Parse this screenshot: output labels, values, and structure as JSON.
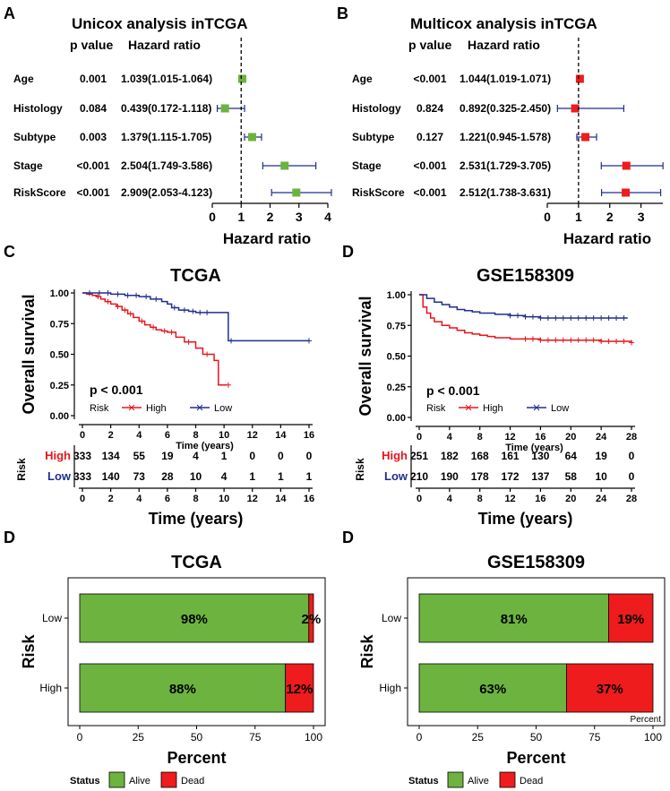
{
  "colors": {
    "green": "#6cb33f",
    "red": "#ee1c1c",
    "blue": "#1f2f8f",
    "black": "#000000",
    "grey": "#888888",
    "legendRed": "#e8141c",
    "kmRed": "#e8141c",
    "kmBlue": "#1f2f8f"
  },
  "chart_data": [
    {
      "type": "forest",
      "panel_label": "A",
      "title": "Unicox analysis inTCGA",
      "col_p": "p value",
      "col_hr": "Hazard ratio",
      "xlabel": "Hazard ratio",
      "xlim": [
        0,
        4
      ],
      "ticks": [
        0,
        1,
        2,
        3,
        4
      ],
      "ref": 1,
      "marker": "green",
      "rows": [
        {
          "name": "Age",
          "p": "0.001",
          "hrtext": "1.039(1.015-1.064)",
          "hr": 1.039,
          "lo": 1.015,
          "hi": 1.064
        },
        {
          "name": "Histology",
          "p": "0.084",
          "hrtext": "0.439(0.172-1.118)",
          "hr": 0.439,
          "lo": 0.172,
          "hi": 1.118
        },
        {
          "name": "Subtype",
          "p": "0.003",
          "hrtext": "1.379(1.115-1.705)",
          "hr": 1.379,
          "lo": 1.115,
          "hi": 1.705
        },
        {
          "name": "Stage",
          "p": "<0.001",
          "hrtext": "2.504(1.749-3.586)",
          "hr": 2.504,
          "lo": 1.749,
          "hi": 3.586
        },
        {
          "name": "RiskScore",
          "p": "<0.001",
          "hrtext": "2.909(2.053-4.123)",
          "hr": 2.909,
          "lo": 2.053,
          "hi": 4.123
        }
      ]
    },
    {
      "type": "forest",
      "panel_label": "B",
      "title": "Multicox analysis inTCGA",
      "col_p": "p value",
      "col_hr": "Hazard ratio",
      "xlabel": "Hazard ratio",
      "xlim": [
        0,
        3.7
      ],
      "ticks": [
        0,
        1,
        2,
        3
      ],
      "ref": 1,
      "marker": "red",
      "rows": [
        {
          "name": "Age",
          "p": "<0.001",
          "hrtext": "1.044(1.019-1.071)",
          "hr": 1.044,
          "lo": 1.019,
          "hi": 1.071
        },
        {
          "name": "Histology",
          "p": "0.824",
          "hrtext": "0.892(0.325-2.450)",
          "hr": 0.892,
          "lo": 0.325,
          "hi": 2.45
        },
        {
          "name": "Subtype",
          "p": "0.127",
          "hrtext": "1.221(0.945-1.578)",
          "hr": 1.221,
          "lo": 0.945,
          "hi": 1.578
        },
        {
          "name": "Stage",
          "p": "<0.001",
          "hrtext": "2.531(1.729-3.705)",
          "hr": 2.531,
          "lo": 1.729,
          "hi": 3.705
        },
        {
          "name": "RiskScore",
          "p": "<0.001",
          "hrtext": "2.512(1.738-3.631)",
          "hr": 2.512,
          "lo": 1.738,
          "hi": 3.631
        }
      ]
    },
    {
      "type": "line",
      "subtype": "kaplan-meier",
      "panel_label": "C",
      "title": "TCGA",
      "ylabel": "Overall survival",
      "xlabel_small": "Time (years)",
      "xlabel": "Time (years)",
      "xlim": [
        0,
        16
      ],
      "ylim": [
        0,
        1
      ],
      "xticks": [
        0,
        2,
        4,
        6,
        8,
        10,
        12,
        14,
        16
      ],
      "yticks": [
        "0.00",
        "0.25",
        "0.50",
        "0.75",
        "1.00"
      ],
      "pvalue": "p < 0.001",
      "legend_title": "Risk",
      "risk_title": "Risk",
      "series": [
        {
          "name": "High",
          "color": "kmRed",
          "x": [
            0,
            0.3,
            0.7,
            1,
            1.3,
            1.6,
            2,
            2.4,
            2.8,
            3.2,
            3.6,
            4,
            4.4,
            4.8,
            5.2,
            5.6,
            6,
            6.6,
            7.2,
            8,
            8.5,
            9.3,
            9.6,
            10.2
          ],
          "y": [
            1,
            0.99,
            0.98,
            0.97,
            0.95,
            0.93,
            0.91,
            0.89,
            0.86,
            0.83,
            0.8,
            0.77,
            0.74,
            0.72,
            0.7,
            0.69,
            0.68,
            0.64,
            0.6,
            0.55,
            0.5,
            0.45,
            0.25,
            0.25
          ],
          "censor_x": [
            1.1,
            1.8,
            2.5,
            3,
            3.4,
            4.2,
            5,
            5.8,
            6.3,
            7.5,
            8.8,
            10.3
          ],
          "risk": [
            333,
            134,
            55,
            19,
            4,
            1,
            0,
            0,
            0
          ]
        },
        {
          "name": "Low",
          "color": "kmBlue",
          "x": [
            0,
            1,
            2,
            3,
            4,
            4.8,
            5.6,
            6,
            6.3,
            6.8,
            7.5,
            8,
            8.5,
            9,
            9.5,
            10,
            10.3,
            12,
            14,
            16
          ],
          "y": [
            1,
            1,
            0.99,
            0.98,
            0.97,
            0.95,
            0.93,
            0.91,
            0.88,
            0.86,
            0.85,
            0.84,
            0.84,
            0.84,
            0.84,
            0.84,
            0.61,
            0.61,
            0.61,
            0.61
          ],
          "censor_x": [
            0.5,
            1.2,
            1.8,
            2.5,
            3.2,
            3.8,
            4.5,
            5.2,
            6.5,
            7.2,
            7.8,
            8.3,
            8.8,
            10.5,
            16
          ],
          "risk": [
            333,
            140,
            73,
            28,
            10,
            4,
            1,
            1,
            1
          ]
        }
      ]
    },
    {
      "type": "line",
      "subtype": "kaplan-meier",
      "panel_label": "D",
      "title": "GSE158309",
      "ylabel": "Overall survival",
      "xlabel_small": "Time (years)",
      "xlabel": "Time (years)",
      "xlim": [
        0,
        28
      ],
      "ylim": [
        0,
        1
      ],
      "xticks": [
        0,
        4,
        8,
        12,
        16,
        20,
        24,
        28
      ],
      "yticks": [
        "0.00",
        "0.25",
        "0.50",
        "0.75",
        "1.00"
      ],
      "pvalue": "p < 0.001",
      "legend_title": "Risk",
      "risk_title": "Risk",
      "series": [
        {
          "name": "High",
          "color": "kmRed",
          "x": [
            0,
            0.5,
            1,
            1.5,
            2,
            3,
            4,
            5,
            6,
            7,
            8,
            9,
            10,
            11,
            12,
            14,
            16,
            18,
            20,
            22,
            24,
            26,
            28
          ],
          "y": [
            1,
            0.9,
            0.85,
            0.81,
            0.78,
            0.75,
            0.73,
            0.71,
            0.69,
            0.68,
            0.67,
            0.66,
            0.65,
            0.65,
            0.64,
            0.64,
            0.63,
            0.63,
            0.63,
            0.63,
            0.62,
            0.62,
            0.61
          ],
          "censor_x": [
            14,
            15,
            16,
            17,
            18,
            19,
            20,
            21,
            22,
            23,
            24,
            25,
            26,
            27,
            28
          ],
          "risk": [
            251,
            182,
            168,
            161,
            130,
            64,
            19,
            0
          ]
        },
        {
          "name": "Low",
          "color": "kmBlue",
          "x": [
            0,
            1,
            2,
            3,
            4,
            5,
            6,
            7,
            8,
            9,
            10,
            11,
            12,
            14,
            16,
            18,
            20,
            22,
            24,
            26,
            27.5
          ],
          "y": [
            1,
            0.97,
            0.94,
            0.92,
            0.9,
            0.88,
            0.87,
            0.86,
            0.85,
            0.85,
            0.84,
            0.84,
            0.83,
            0.82,
            0.81,
            0.81,
            0.81,
            0.81,
            0.81,
            0.81,
            0.81
          ],
          "censor_x": [
            12,
            13,
            14,
            15,
            16,
            17,
            18,
            19,
            20,
            21,
            22,
            23,
            24,
            25,
            26,
            27
          ],
          "risk": [
            210,
            190,
            178,
            172,
            137,
            58,
            10,
            0
          ]
        }
      ]
    },
    {
      "type": "bar",
      "orientation": "horizontal",
      "stacked": true,
      "panel_label": "D",
      "title": "TCGA",
      "ylabel": "Risk",
      "xlabel": "Percent",
      "categories": [
        "Low",
        "High"
      ],
      "xticks": [
        0,
        25,
        50,
        75,
        100
      ],
      "legend_title": "Status",
      "series": [
        {
          "name": "Alive",
          "color": "green",
          "values": [
            98,
            88
          ]
        },
        {
          "name": "Dead",
          "color": "red",
          "values": [
            2,
            12
          ]
        }
      ],
      "labels": [
        [
          "98%",
          "2%"
        ],
        [
          "88%",
          "12%"
        ]
      ]
    },
    {
      "type": "bar",
      "orientation": "horizontal",
      "stacked": true,
      "panel_label": "D",
      "title": "GSE158309",
      "ylabel": "Risk",
      "xlabel": "Percent",
      "categories": [
        "Low",
        "High"
      ],
      "xticks": [
        0,
        25,
        50,
        75,
        100
      ],
      "legend_title": "Status",
      "corner_note": "Percent",
      "series": [
        {
          "name": "Alive",
          "color": "green",
          "values": [
            81,
            63
          ]
        },
        {
          "name": "Dead",
          "color": "red",
          "values": [
            19,
            37
          ]
        }
      ],
      "labels": [
        [
          "81%",
          "19%"
        ],
        [
          "63%",
          "37%"
        ]
      ]
    }
  ]
}
